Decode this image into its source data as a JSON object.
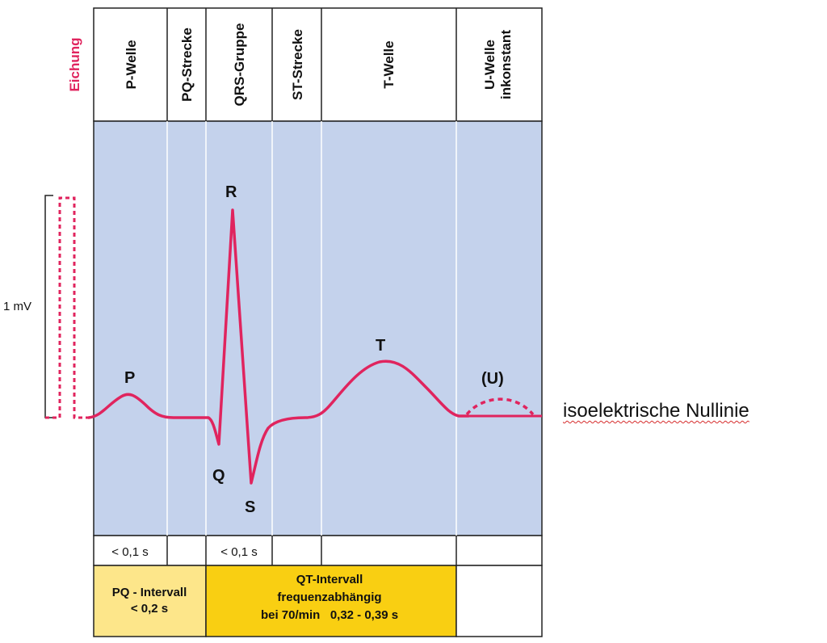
{
  "calibration": {
    "label": "Eichung",
    "voltage": "1 mV"
  },
  "header": {
    "columns": [
      "P-Welle",
      "PQ-Strecke",
      "QRS-Gruppe",
      "ST-Strecke",
      "T-Welle"
    ],
    "u_wave": [
      "U-Welle",
      "inkonstant"
    ]
  },
  "waves": {
    "p": "P",
    "q": "Q",
    "r": "R",
    "s": "S",
    "t": "T",
    "u": "(U)"
  },
  "durations": {
    "p_wave": "< 0,1 s",
    "qrs": "< 0,1 s"
  },
  "intervals": {
    "pq": [
      "PQ - Intervall",
      "< 0,2 s"
    ],
    "qt": [
      "QT-Intervall",
      "frequenzabhängig",
      "bei 70/min   0,32 - 0,39 s"
    ]
  },
  "baseline_label": "isoelektrische Nullinie",
  "colors": {
    "trace": "#e0245e",
    "panel": "#c4d2ec",
    "pq_box": "#fde68a",
    "qt_box": "#f9cf12"
  }
}
